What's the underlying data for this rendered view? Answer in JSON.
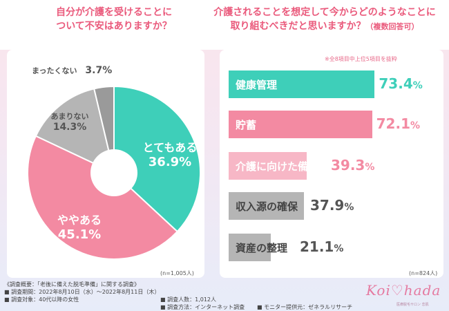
{
  "questions": {
    "left_line1": "自分が介護を受けることに",
    "left_line2": "ついて不安はありますか？",
    "right_line1": "介護されることを想定して今からどのようなことに",
    "right_line2": "取り組むべきだと思いますか？",
    "right_note": "（複数回答可）"
  },
  "top_note": "※全8項目中上位5項目を抜粋",
  "colors": {
    "teal": "#3ecfb9",
    "pink": "#f38aa2",
    "light_pink": "#f7b7c6",
    "gray": "#b5b5b5",
    "dark_gray": "#9a9a9a"
  },
  "chart_data": [
    {
      "type": "pie",
      "labels": [
        "とてもある",
        "ややある",
        "あまりない",
        "まったくない"
      ],
      "values": [
        36.9,
        45.1,
        14.3,
        3.7
      ],
      "pct_labels": [
        "36.9%",
        "45.1%",
        "14.3%",
        "3.7%"
      ],
      "n_label": "(n=1,005人)"
    },
    {
      "type": "bar",
      "categories": [
        "健康管理",
        "貯蓄",
        "介護に向けた備え",
        "収入源の確保",
        "資産の整理"
      ],
      "values": [
        73.4,
        72.1,
        39.3,
        37.9,
        21.1
      ],
      "pct_labels": [
        "73.4%",
        "72.1%",
        "39.3%",
        "37.9%",
        "21.1%"
      ],
      "n_label": "(n=824人)"
    }
  ],
  "footer": {
    "line1": "《調査概要：「老後に備えた脱毛準備」に関する調査》",
    "line2": "■ 調査期間：2022年8月10日（水）～2022年8月11日（木）",
    "line3": "■ 調査対象：40代以降の女性",
    "col2a": "■ 調査人数：1,012人",
    "col2b": "■ 調査方法：インターネット調査",
    "col3": "■ モニター提供元：ゼネラルリサーチ"
  },
  "logo": {
    "text": "Koi♡hada",
    "sub": "医療脱毛サロン 恋肌"
  }
}
